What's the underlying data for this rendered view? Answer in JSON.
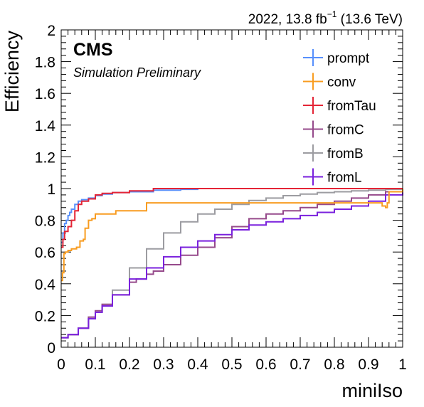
{
  "header": {
    "lumi_prefix": "2022, 13.8 fb",
    "lumi_sup": "−1",
    "lumi_suffix": " (13.6 TeV)",
    "cms": "CMS",
    "subtitle": "Simulation Preliminary"
  },
  "chart_data": {
    "type": "line",
    "xlabel": "miniIso",
    "ylabel": "Efficiency",
    "xlim": [
      0,
      1
    ],
    "ylim": [
      0,
      2
    ],
    "xticks": [
      "0",
      "0.1",
      "0.2",
      "0.3",
      "0.4",
      "0.5",
      "0.6",
      "0.7",
      "0.8",
      "0.9",
      "1"
    ],
    "yticks": [
      "0",
      "0.2",
      "0.4",
      "0.6",
      "0.8",
      "1",
      "1.2",
      "1.4",
      "1.6",
      "1.8",
      "2"
    ],
    "legend_position": "top-right",
    "series": [
      {
        "name": "prompt",
        "color": "#5790fc",
        "x": [
          0,
          0.005,
          0.01,
          0.015,
          0.02,
          0.025,
          0.03,
          0.04,
          0.05,
          0.06,
          0.08,
          0.1,
          0.12,
          0.15,
          0.2,
          0.27,
          0.3,
          0.35,
          0.4
        ],
        "y": [
          0.66,
          0.72,
          0.78,
          0.8,
          0.83,
          0.85,
          0.87,
          0.9,
          0.92,
          0.93,
          0.94,
          0.955,
          0.965,
          0.975,
          0.98,
          0.99,
          0.99,
          0.995,
          1.0
        ]
      },
      {
        "name": "conv",
        "color": "#f89c20",
        "x": [
          0,
          0.004,
          0.008,
          0.012,
          0.02,
          0.03,
          0.045,
          0.055,
          0.065,
          0.07,
          0.08,
          0.09,
          0.1,
          0.14,
          0.16,
          0.2,
          0.24,
          0.25,
          0.3,
          0.5,
          0.9,
          0.935,
          0.94,
          0.95,
          0.955,
          0.96,
          1.0
        ],
        "y": [
          0.42,
          0.47,
          0.59,
          0.6,
          0.61,
          0.62,
          0.63,
          0.67,
          0.68,
          0.75,
          0.8,
          0.81,
          0.84,
          0.84,
          0.86,
          0.86,
          0.86,
          0.91,
          0.91,
          0.91,
          0.91,
          0.91,
          0.89,
          0.88,
          0.91,
          0.98,
          1.0
        ]
      },
      {
        "name": "fromTau",
        "color": "#e42536",
        "x": [
          0,
          0.005,
          0.01,
          0.02,
          0.03,
          0.04,
          0.05,
          0.06,
          0.08,
          0.1,
          0.12,
          0.15,
          0.2,
          0.27,
          0.3,
          0.5,
          1.0
        ],
        "y": [
          0.63,
          0.68,
          0.73,
          0.76,
          0.8,
          0.86,
          0.9,
          0.92,
          0.935,
          0.96,
          0.97,
          0.975,
          0.985,
          1.0,
          1.0,
          1.0,
          1.0
        ]
      },
      {
        "name": "fromC",
        "color": "#964a8b",
        "x": [
          0,
          0.02,
          0.05,
          0.08,
          0.1,
          0.12,
          0.15,
          0.2,
          0.22,
          0.25,
          0.27,
          0.3,
          0.35,
          0.4,
          0.45,
          0.5,
          0.55,
          0.6,
          0.65,
          0.7,
          0.75,
          0.8,
          0.85,
          0.9,
          0.95,
          1.0
        ],
        "y": [
          0.06,
          0.08,
          0.12,
          0.19,
          0.23,
          0.27,
          0.33,
          0.41,
          0.43,
          0.46,
          0.48,
          0.52,
          0.58,
          0.63,
          0.69,
          0.76,
          0.81,
          0.84,
          0.86,
          0.88,
          0.9,
          0.92,
          0.94,
          0.96,
          0.98,
          1.0
        ]
      },
      {
        "name": "fromB",
        "color": "#9c9ca1",
        "x": [
          0,
          0.02,
          0.05,
          0.08,
          0.1,
          0.12,
          0.15,
          0.2,
          0.25,
          0.3,
          0.35,
          0.4,
          0.45,
          0.5,
          0.55,
          0.6,
          0.65,
          0.7,
          0.75,
          0.8,
          0.85,
          0.9,
          0.95,
          1.0
        ],
        "y": [
          0.06,
          0.08,
          0.12,
          0.18,
          0.22,
          0.27,
          0.36,
          0.5,
          0.62,
          0.72,
          0.79,
          0.84,
          0.87,
          0.9,
          0.925,
          0.94,
          0.955,
          0.965,
          0.975,
          0.98,
          0.985,
          0.99,
          0.995,
          1.0
        ]
      },
      {
        "name": "fromL",
        "color": "#7a21dd",
        "x": [
          0,
          0.02,
          0.05,
          0.08,
          0.1,
          0.12,
          0.15,
          0.2,
          0.25,
          0.3,
          0.35,
          0.4,
          0.45,
          0.5,
          0.55,
          0.6,
          0.65,
          0.7,
          0.75,
          0.8,
          0.85,
          0.9,
          0.95,
          1.0
        ],
        "y": [
          0.06,
          0.08,
          0.12,
          0.18,
          0.22,
          0.26,
          0.33,
          0.43,
          0.5,
          0.57,
          0.63,
          0.67,
          0.71,
          0.74,
          0.77,
          0.79,
          0.81,
          0.83,
          0.85,
          0.87,
          0.89,
          0.92,
          0.96,
          1.0
        ]
      }
    ]
  }
}
